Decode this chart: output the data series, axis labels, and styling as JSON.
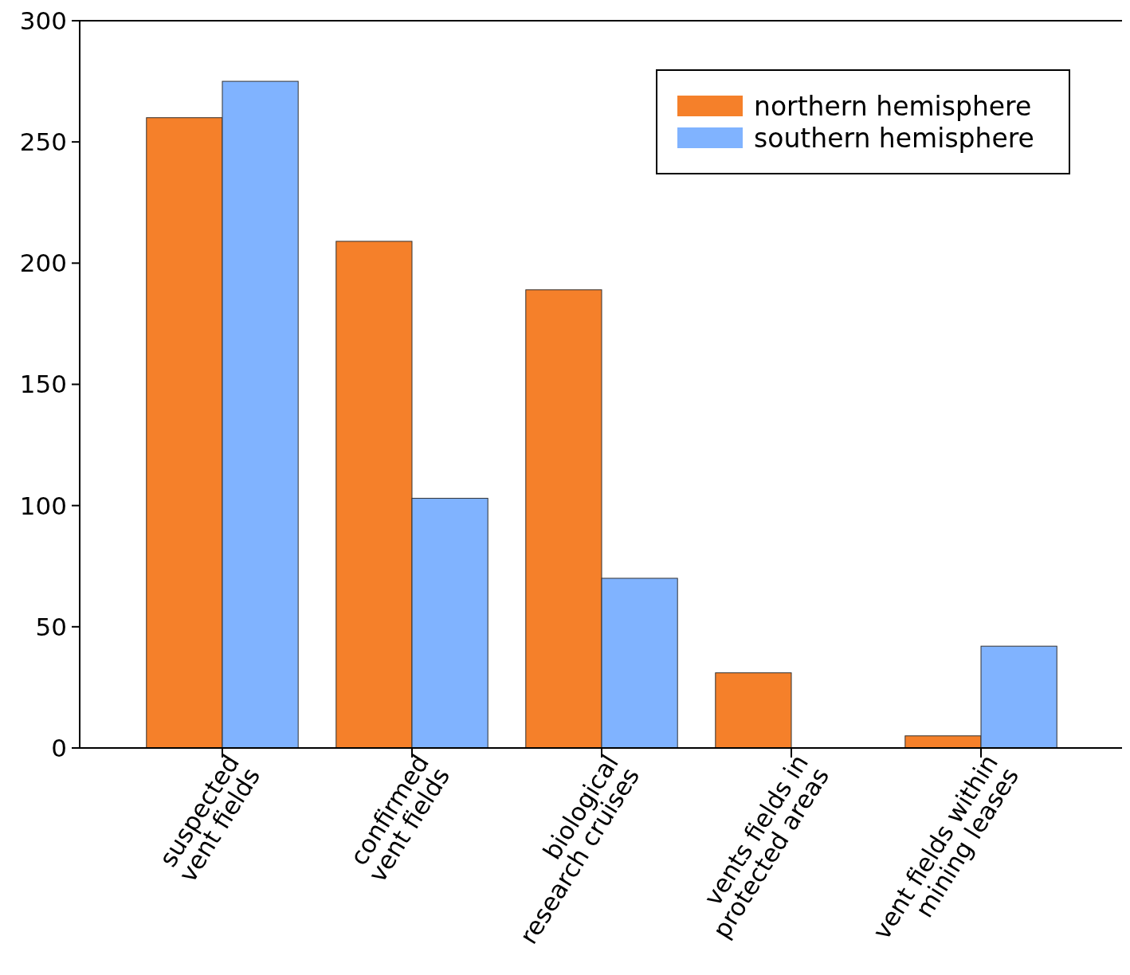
{
  "chart_data": {
    "type": "bar",
    "categories": [
      "suspected\nvent fields",
      "confirmed\nvent fields",
      "biological\nresearch cruises",
      "vents fields in\nprotected areas",
      "vent fields within\nmining leases"
    ],
    "series": [
      {
        "name": "northern hemisphere",
        "color": "#f5802a",
        "values": [
          260,
          209,
          189,
          31,
          5
        ]
      },
      {
        "name": "southern hemisphere",
        "color": "#80b3ff",
        "values": [
          275,
          103,
          70,
          0,
          42
        ]
      }
    ],
    "ylim": [
      0,
      300
    ],
    "yticks": [
      0,
      50,
      100,
      150,
      200,
      250,
      300
    ],
    "grid": false,
    "legend": "top right"
  }
}
